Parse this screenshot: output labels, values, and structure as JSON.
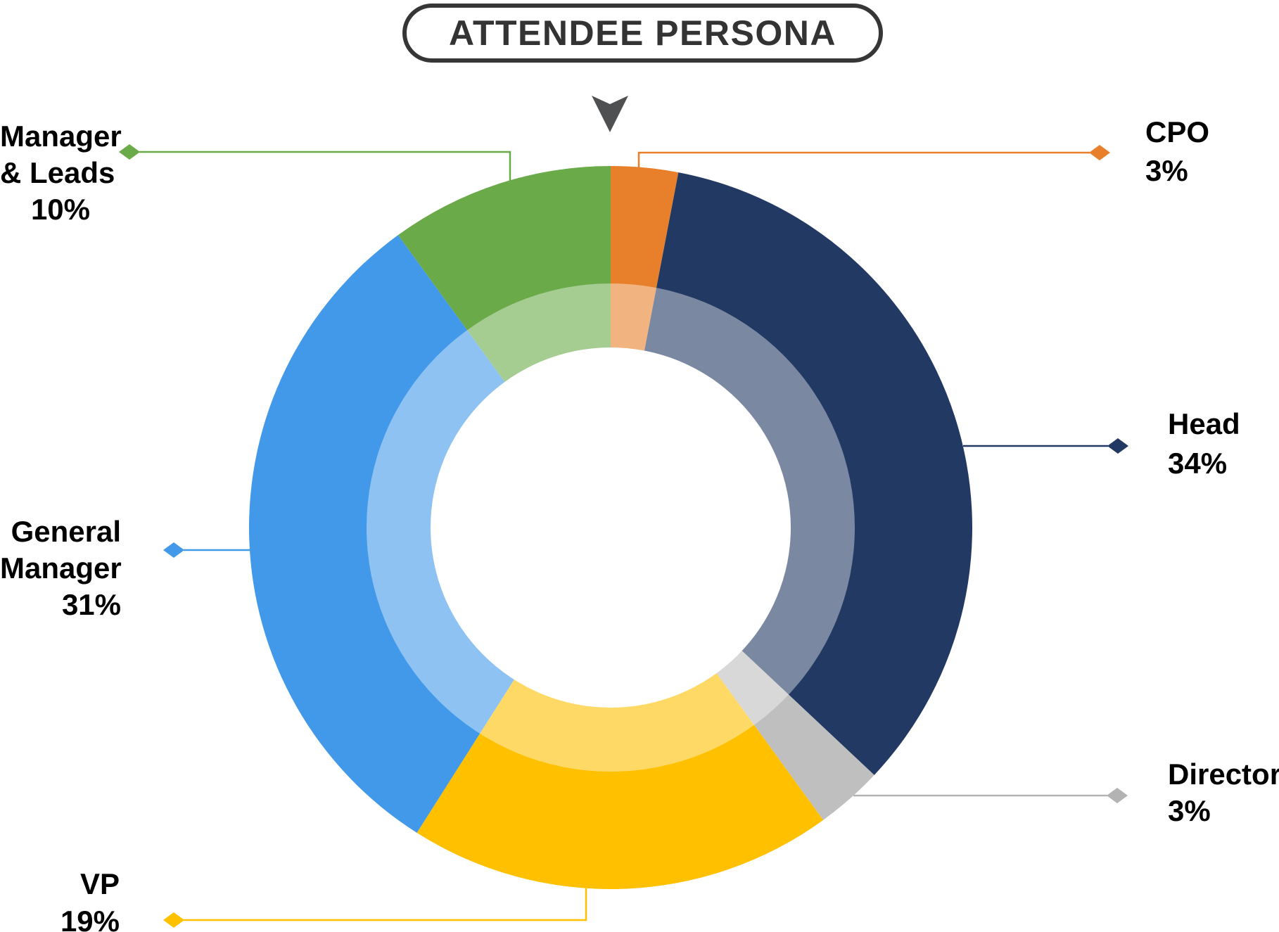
{
  "title": "ATTENDEE PERSONA",
  "arrow_icon": {
    "name": "down-arrow",
    "color": "#4F5052"
  },
  "chart_data": {
    "type": "pie",
    "subtype": "donut-double-ring",
    "title": "ATTENDEE PERSONA",
    "start_angle": "top",
    "direction": "clockwise",
    "legend_position": "callouts-around-chart",
    "grid": false,
    "inner_ring_white_overlay": 0.4,
    "segments": [
      {
        "key": "cpo",
        "label": "CPO",
        "value": 3,
        "display": "3%",
        "color": "#E8802B"
      },
      {
        "key": "head",
        "label": "Head",
        "value": 34,
        "display": "34%",
        "color": "#223963"
      },
      {
        "key": "director",
        "label": "Director",
        "value": 3,
        "display": "3%",
        "color": "#BFBFBF",
        "leader_color": "#B3B3B3"
      },
      {
        "key": "vp",
        "label": "VP",
        "value": 19,
        "display": "19%",
        "color": "#FFC000"
      },
      {
        "key": "general_manager",
        "label": "General Manager",
        "value": 31,
        "display": "31%",
        "color": "#4299E9"
      },
      {
        "key": "manager_leads",
        "label": "Manager & Leads",
        "value": 10,
        "display": "10%",
        "color": "#6AAA49"
      }
    ]
  },
  "callouts": {
    "manager_leads": {
      "lines": [
        "Manager",
        "& Leads",
        "10%"
      ]
    },
    "cpo": {
      "lines": [
        "CPO",
        "3%"
      ]
    },
    "head": {
      "lines": [
        "Head",
        "34%"
      ]
    },
    "director": {
      "lines": [
        "Director",
        "3%"
      ]
    },
    "general_manager": {
      "lines": [
        "General",
        "Manager",
        "31%"
      ]
    },
    "vp": {
      "lines": [
        "VP",
        "19%"
      ]
    }
  }
}
